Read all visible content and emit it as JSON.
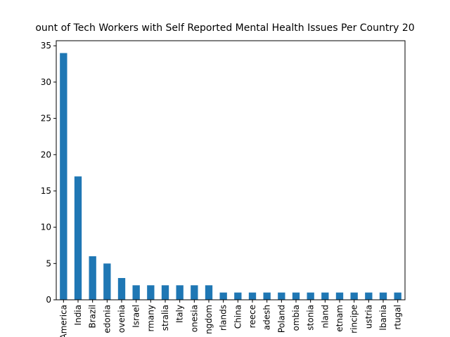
{
  "chart_data": {
    "type": "bar",
    "title": "ount of Tech Workers with Self Reported Mental Health Issues Per Country 20",
    "categories": [
      "America",
      "India",
      "Brazil",
      "edonia",
      "ovenia",
      "Israel",
      "rmany",
      "stralia",
      "Italy",
      "onesia",
      "ngdom",
      "rlands",
      "China",
      "reece",
      "adesh",
      "Poland",
      "ombia",
      "stonia",
      "nland",
      "etnam",
      "rincipe",
      "ustria",
      "lbania",
      "rtugal"
    ],
    "values": [
      34,
      17,
      6,
      5,
      3,
      2,
      2,
      2,
      2,
      2,
      2,
      1,
      1,
      1,
      1,
      1,
      1,
      1,
      1,
      1,
      1,
      1,
      1,
      1
    ],
    "color": "#1f77b4",
    "ylim": [
      0,
      35.7
    ],
    "yticks": [
      0,
      5,
      10,
      15,
      20,
      25,
      30,
      35
    ]
  }
}
